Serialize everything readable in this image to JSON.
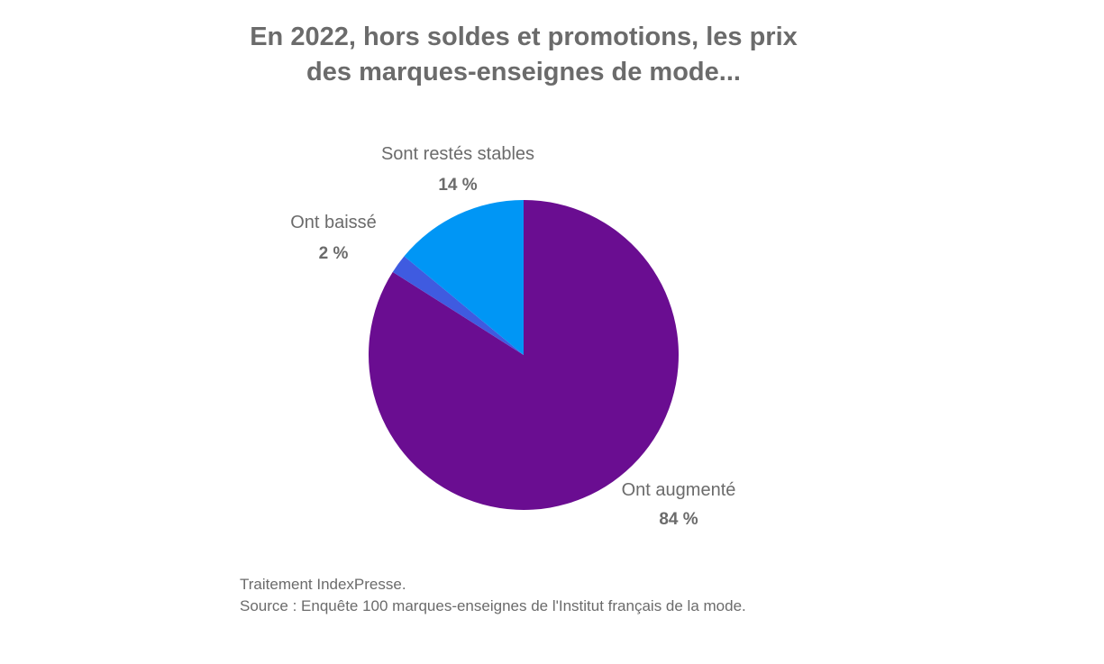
{
  "title_lines": [
    "En 2022, hors soldes et promotions, les prix",
    "des marques-enseignes de mode..."
  ],
  "footer": {
    "credit": "Traitement IndexPresse.",
    "source": "Source : Enquête 100 marques-enseignes de l'Institut français de la mode."
  },
  "chart_data": {
    "type": "pie",
    "title": "En 2022, hors soldes et promotions, les prix des marques-enseignes de mode...",
    "start_angle": "12 o'clock",
    "direction": "clockwise",
    "slices": [
      {
        "label": "Ont augmenté",
        "value": 84,
        "value_label": "84 %",
        "color": "#6a0d91"
      },
      {
        "label": "Ont baissé",
        "value": 2,
        "value_label": "2 %",
        "color": "#3f5be0"
      },
      {
        "label": "Sont restés stables",
        "value": 14,
        "value_label": "14 %",
        "color": "#0096f5"
      }
    ]
  }
}
